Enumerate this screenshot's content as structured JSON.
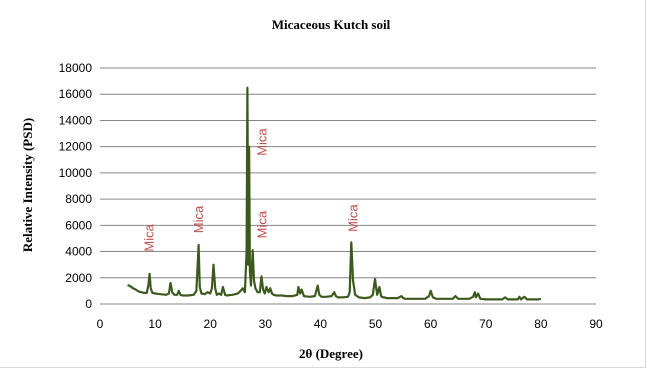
{
  "chart_data": {
    "type": "line",
    "title": "Micaceous Kutch soil",
    "xlabel": "2θ (Degree)",
    "ylabel": "Relative Intensity  (PSD)",
    "xlim": [
      0,
      90
    ],
    "ylim": [
      0,
      18000
    ],
    "x_ticks": [
      "0",
      "10",
      "20",
      "30",
      "40",
      "50",
      "60",
      "70",
      "80",
      "90"
    ],
    "y_ticks": [
      "0",
      "2000",
      "4000",
      "6000",
      "8000",
      "10000",
      "12000",
      "14000",
      "16000",
      "18000"
    ],
    "grid": "horizontal",
    "series_color": "#3d5a1e",
    "annotation_color": "#c0504d",
    "series": [
      {
        "x": [
          5,
          5.5,
          6,
          6.5,
          7,
          7.5,
          8,
          8.5,
          8.8,
          9.0,
          9.2,
          9.5,
          10,
          11,
          12,
          12.5,
          12.8,
          13.1,
          13.5,
          14,
          14.3,
          14.6,
          15,
          16,
          17,
          17.5,
          17.9,
          18.1,
          18.4,
          19,
          19.5,
          20,
          20.3,
          20.6,
          20.9,
          21.2,
          21.6,
          22,
          22.3,
          22.7,
          23,
          24,
          25,
          25.5,
          25.9,
          26.3,
          26.6,
          26.75,
          26.9,
          27.05,
          27.2,
          27.4,
          27.7,
          27.95,
          28.2,
          28.6,
          29,
          29.3,
          29.6,
          29.9,
          30.2,
          30.6,
          30.9,
          31.2,
          31.5,
          32,
          33,
          34,
          35,
          35.8,
          36,
          36.3,
          36.6,
          37,
          38,
          39,
          39.5,
          39.8,
          40.2,
          41,
          42,
          42.5,
          42.8,
          43.2,
          44,
          45,
          45.3,
          45.6,
          45.9,
          46.3,
          47,
          48,
          49,
          49.5,
          49.9,
          50.3,
          50.7,
          51,
          51.3,
          51.6,
          52,
          53,
          54,
          54.7,
          55,
          55.4,
          56,
          57,
          58,
          59,
          59.7,
          60,
          60.4,
          61,
          62,
          63,
          64,
          64.5,
          65,
          66,
          67,
          67.7,
          68,
          68.2,
          68.6,
          69,
          70,
          71,
          72,
          73,
          73.5,
          74,
          75,
          75.8,
          76.1,
          76.4,
          77,
          77.5,
          78,
          78.5,
          79,
          79.5,
          80
        ],
        "y": [
          1450,
          1350,
          1200,
          1100,
          950,
          900,
          850,
          850,
          1500,
          2300,
          1200,
          850,
          800,
          750,
          700,
          800,
          1600,
          900,
          700,
          700,
          1000,
          700,
          650,
          650,
          700,
          1000,
          4500,
          1300,
          800,
          750,
          900,
          800,
          1200,
          3000,
          1200,
          700,
          800,
          700,
          1300,
          700,
          650,
          700,
          800,
          1000,
          1200,
          900,
          4000,
          16500,
          3000,
          12000,
          2500,
          1400,
          4100,
          1800,
          1200,
          900,
          900,
          2100,
          1100,
          800,
          1300,
          900,
          1200,
          800,
          700,
          650,
          650,
          600,
          600,
          700,
          1300,
          800,
          1100,
          600,
          550,
          600,
          1400,
          700,
          550,
          550,
          600,
          900,
          600,
          500,
          500,
          550,
          900,
          4700,
          1800,
          700,
          500,
          450,
          500,
          700,
          1900,
          700,
          1300,
          600,
          500,
          500,
          450,
          450,
          450,
          600,
          450,
          400,
          400,
          400,
          400,
          400,
          600,
          1000,
          500,
          400,
          400,
          400,
          400,
          600,
          400,
          400,
          400,
          550,
          900,
          500,
          800,
          400,
          350,
          350,
          350,
          350,
          500,
          350,
          350,
          350,
          550,
          350,
          550,
          350,
          350,
          350,
          350,
          350,
          400
        ]
      }
    ],
    "annotations": [
      {
        "text": "Mica",
        "x": 9,
        "y": 4000
      },
      {
        "text": "Mica",
        "x": 18,
        "y": 5400
      },
      {
        "text": "Mica",
        "x": 29.5,
        "y": 11300
      },
      {
        "text": "Mica",
        "x": 29.5,
        "y": 5000
      },
      {
        "text": "Mica",
        "x": 46,
        "y": 5500
      }
    ]
  }
}
